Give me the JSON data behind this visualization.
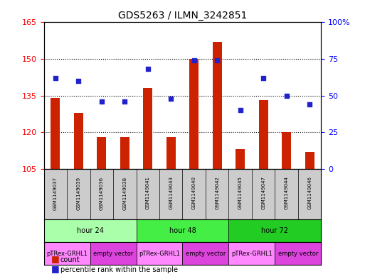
{
  "title": "GDS5263 / ILMN_3242851",
  "samples": [
    "GSM1149037",
    "GSM1149039",
    "GSM1149036",
    "GSM1149038",
    "GSM1149041",
    "GSM1149043",
    "GSM1149040",
    "GSM1149042",
    "GSM1149045",
    "GSM1149047",
    "GSM1149044",
    "GSM1149046"
  ],
  "counts": [
    134,
    128,
    118,
    118,
    138,
    118,
    150,
    157,
    113,
    133,
    120,
    112
  ],
  "percentile_ranks": [
    62,
    60,
    46,
    46,
    68,
    48,
    74,
    74,
    40,
    62,
    50,
    44
  ],
  "ylim_left": [
    105,
    165
  ],
  "ylim_right": [
    0,
    100
  ],
  "yticks_left": [
    105,
    120,
    135,
    150,
    165
  ],
  "yticks_right": [
    0,
    25,
    50,
    75,
    100
  ],
  "bar_color": "#cc2200",
  "dot_color": "#2222cc",
  "time_groups": [
    {
      "label": "hour 24",
      "start": 0,
      "end": 4,
      "color": "#aaffaa"
    },
    {
      "label": "hour 48",
      "start": 4,
      "end": 8,
      "color": "#44ee44"
    },
    {
      "label": "hour 72",
      "start": 8,
      "end": 12,
      "color": "#22cc22"
    }
  ],
  "protocol_groups": [
    {
      "label": "pTRex-GRHL1",
      "start": 0,
      "end": 2,
      "color": "#ff88ff"
    },
    {
      "label": "empty vector",
      "start": 2,
      "end": 4,
      "color": "#dd44dd"
    },
    {
      "label": "pTRex-GRHL1",
      "start": 4,
      "end": 6,
      "color": "#ff88ff"
    },
    {
      "label": "empty vector",
      "start": 6,
      "end": 8,
      "color": "#dd44dd"
    },
    {
      "label": "pTRex-GRHL1",
      "start": 8,
      "end": 10,
      "color": "#ff88ff"
    },
    {
      "label": "empty vector",
      "start": 10,
      "end": 12,
      "color": "#dd44dd"
    }
  ],
  "background_color": "#ffffff",
  "plot_bg_color": "#ffffff",
  "grid_color": "#000000",
  "sample_bg_color": "#cccccc"
}
